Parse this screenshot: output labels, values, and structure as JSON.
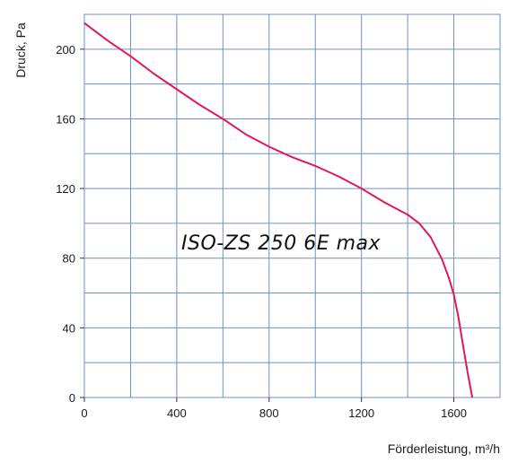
{
  "chart_data": {
    "type": "line",
    "title": "",
    "xlabel": "Förderleistung, m³/h",
    "ylabel": "Druck, Pa",
    "annotation": "ISO-ZS 250 6E max",
    "xlim": [
      0,
      1800
    ],
    "ylim": [
      0,
      220
    ],
    "x_ticks": [
      0,
      400,
      800,
      1200,
      1600
    ],
    "y_ticks": [
      0,
      40,
      80,
      120,
      160,
      200
    ],
    "x_grid_step": 200,
    "y_grid_step": 20,
    "grid": true,
    "grid_color": "#6f8fc6",
    "series": [
      {
        "name": "",
        "color": "#e0185a",
        "x": [
          0,
          100,
          200,
          300,
          400,
          500,
          600,
          700,
          800,
          900,
          1000,
          1100,
          1200,
          1300,
          1400,
          1450,
          1500,
          1550,
          1580,
          1600,
          1620,
          1640,
          1660,
          1680
        ],
        "y": [
          215,
          205,
          196,
          186,
          177,
          168,
          160,
          151,
          144,
          138,
          133,
          127,
          120,
          112,
          105,
          100,
          92,
          79,
          68,
          59,
          46,
          30,
          14,
          0
        ]
      }
    ]
  }
}
